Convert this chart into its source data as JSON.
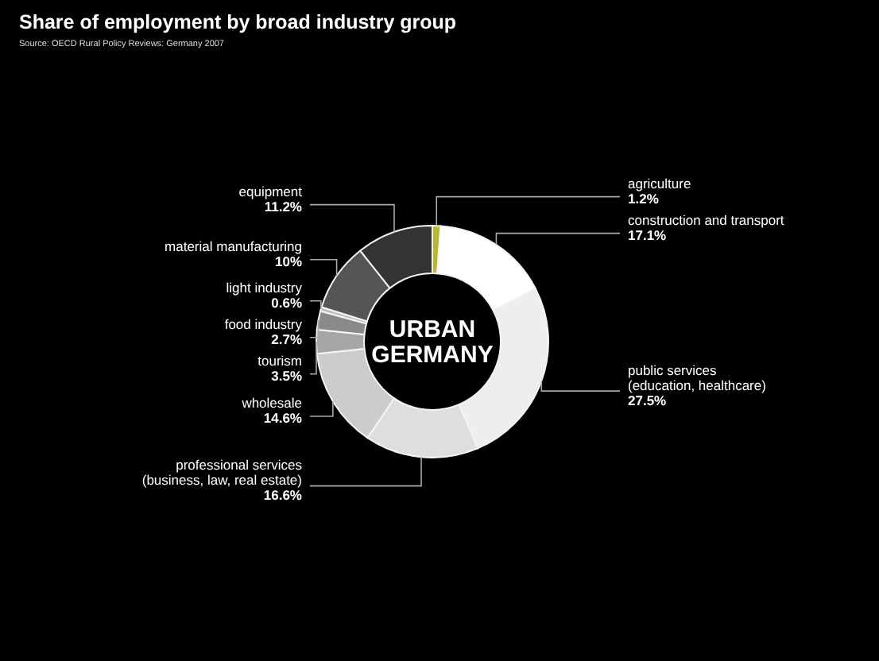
{
  "chart_data": {
    "type": "donut",
    "title": "Share of employment by broad industry group",
    "subtitle": "Source: OECD Rural Policy Reviews: Germany 2007",
    "annotations": [
      "URBAN\nGERMANY"
    ],
    "categories": [
      "agriculture",
      "construction and transport",
      "public services\n(education, healthcare)",
      "professional services\n(business, law, real estate)",
      "wholesale",
      "tourism",
      "food industry",
      "light industry",
      "material manufacturing",
      "equipment"
    ],
    "values": [
      1.2,
      17.1,
      27.5,
      16.6,
      14.6,
      3.5,
      2.7,
      0.6,
      10,
      11.2
    ],
    "colors": [
      "#b8b82a",
      "#ffffff",
      "#eeeeee",
      "#dedede",
      "#cccccc",
      "#a6a6a6",
      "#8a8a8a",
      "#bdbdbd",
      "#555555",
      "#333333"
    ],
    "value_labels": [
      "1.2%",
      "17.1%",
      "27.5%",
      "16.6%",
      "14.6%",
      "3.5%",
      "2.7%",
      "0.6%",
      "10%",
      "11.2%"
    ]
  }
}
